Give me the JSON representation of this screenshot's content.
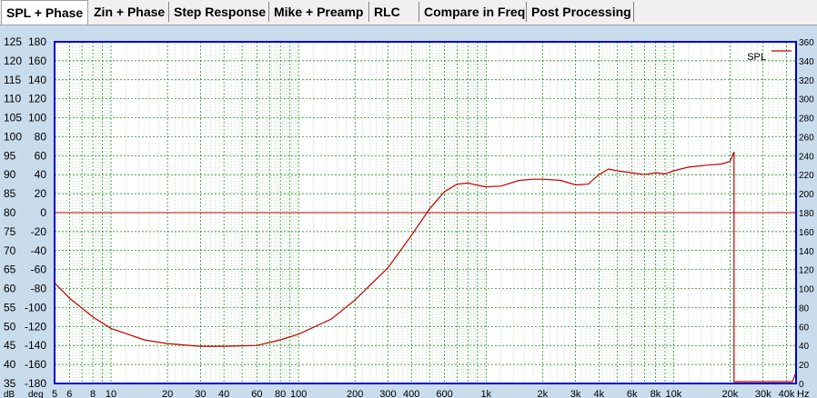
{
  "tabs": [
    {
      "label": "SPL + Phase",
      "active": true
    },
    {
      "label": "Zin + Phase"
    },
    {
      "label": "Step Response"
    },
    {
      "label": "Mike + Preamp"
    },
    {
      "label": "RLC"
    },
    {
      "label": "Compare in Freq"
    },
    {
      "label": "Post Processing"
    }
  ],
  "colors": {
    "background": "#c8dcec",
    "plot": "#ffffff",
    "border": "#0000cc",
    "grid_major": "#008000",
    "grid_minor": "#8fbf8f",
    "spl": "#c00000"
  },
  "chart_data": {
    "type": "line",
    "x_scale": "log",
    "xlim": [
      5,
      45000
    ],
    "ylim": [
      35,
      125
    ],
    "y2lim": [
      -180,
      180
    ],
    "y3lim": [
      0,
      360
    ],
    "grid": true,
    "legend_position": "top-right",
    "x_tick_labels": [
      {
        "v": 5,
        "t": "5"
      },
      {
        "v": 6,
        "t": "6"
      },
      {
        "v": 8,
        "t": "8"
      },
      {
        "v": 10,
        "t": "10"
      },
      {
        "v": 20,
        "t": "20"
      },
      {
        "v": 30,
        "t": "30"
      },
      {
        "v": 40,
        "t": "40"
      },
      {
        "v": 60,
        "t": "60"
      },
      {
        "v": 80,
        "t": "80"
      },
      {
        "v": 100,
        "t": "100"
      },
      {
        "v": 200,
        "t": "200"
      },
      {
        "v": 300,
        "t": "300"
      },
      {
        "v": 400,
        "t": "400"
      },
      {
        "v": 600,
        "t": "600"
      },
      {
        "v": 1000,
        "t": "1k"
      },
      {
        "v": 2000,
        "t": "2k"
      },
      {
        "v": 3000,
        "t": "3k"
      },
      {
        "v": 4000,
        "t": "4k"
      },
      {
        "v": 6000,
        "t": "6k"
      },
      {
        "v": 8000,
        "t": "8k"
      },
      {
        "v": 10000,
        "t": "10k"
      },
      {
        "v": 20000,
        "t": "20k"
      },
      {
        "v": 30000,
        "t": "30k"
      },
      {
        "v": 40000,
        "t": "40k"
      }
    ],
    "x_unit": "Hz",
    "y_unit": "dB",
    "y2_unit": "deg",
    "y_ticks": [
      "125",
      "120",
      "115",
      "110",
      "105",
      "100",
      "95",
      "90",
      "85",
      "80",
      "75",
      "70",
      "65",
      "60",
      "55",
      "50",
      "45",
      "40",
      "35"
    ],
    "y2_ticks": [
      "180",
      "160",
      "140",
      "120",
      "100",
      "80",
      "60",
      "40",
      "20",
      "0",
      "-20",
      "-40",
      "-60",
      "-80",
      "-100",
      "-120",
      "-140",
      "-160",
      "-180"
    ],
    "y3_ticks": [
      "360",
      "340",
      "320",
      "300",
      "280",
      "260",
      "240",
      "220",
      "200",
      "180",
      "160",
      "140",
      "120",
      "100",
      "80",
      "60",
      "40",
      "20",
      "0"
    ],
    "reference_line_y": 80,
    "series": [
      {
        "name": "SPL",
        "color": "#c00000",
        "x": [
          5,
          6,
          8,
          10,
          15,
          20,
          30,
          40,
          60,
          80,
          100,
          150,
          200,
          300,
          400,
          500,
          600,
          700,
          800,
          900,
          1000,
          1200,
          1500,
          1800,
          2000,
          2500,
          3000,
          3500,
          4000,
          4500,
          5000,
          6000,
          7000,
          8000,
          9000,
          10000,
          12000,
          15000,
          18000,
          20000,
          21000
        ],
        "y": [
          61.5,
          57.5,
          52.5,
          49.5,
          46.5,
          45.5,
          44.8,
          44.8,
          45.0,
          46.5,
          48.0,
          52.0,
          57.0,
          65.5,
          74.0,
          81.0,
          85.5,
          87.5,
          87.8,
          87.2,
          86.8,
          87.0,
          88.5,
          88.8,
          88.8,
          88.5,
          87.3,
          87.5,
          90.0,
          91.5,
          91.0,
          90.5,
          90.0,
          90.5,
          90.2,
          91.0,
          92.0,
          92.5,
          92.8,
          93.5,
          96.0
        ]
      }
    ]
  }
}
